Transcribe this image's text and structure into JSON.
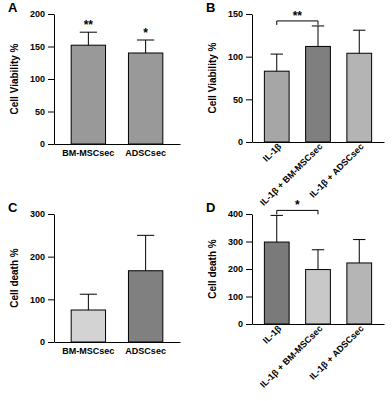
{
  "chart_data": [
    {
      "type": "bar",
      "title": "A",
      "y_label": "Cell Viability %",
      "categories": [
        "BM-MSCsec",
        "ADSCsec"
      ],
      "values": [
        152,
        140
      ],
      "errors": [
        20,
        20
      ],
      "colors": [
        "#999999",
        "#999999"
      ],
      "significance": [
        "**",
        "*"
      ],
      "ylim": [
        0,
        200
      ],
      "yticks": [
        0,
        50,
        100,
        150,
        200
      ],
      "grid": false
    },
    {
      "type": "bar",
      "title": "B",
      "y_label": "Cell Viability %",
      "categories": [
        "IL-1β",
        "IL-1β + BM-MSCsec",
        "IL-1β + ADSCsec"
      ],
      "values": [
        83,
        112,
        104
      ],
      "errors": [
        20,
        24,
        27
      ],
      "colors": [
        "#a6a6a6",
        "#7f7f7f",
        "#b4b4b4"
      ],
      "comparisons": [
        {
          "between": [
            0,
            1
          ],
          "label": "**"
        }
      ],
      "ylim": [
        0,
        150
      ],
      "yticks": [
        0,
        50,
        100,
        150
      ],
      "grid": false
    },
    {
      "type": "bar",
      "title": "C",
      "y_label": "Cell death %",
      "categories": [
        "BM-MSCsec",
        "ADSCsec"
      ],
      "values": [
        75,
        167
      ],
      "errors": [
        37,
        83
      ],
      "colors": [
        "#d3d3d3",
        "#808080"
      ],
      "ylim": [
        0,
        300
      ],
      "yticks": [
        0,
        100,
        200,
        300
      ],
      "grid": false
    },
    {
      "type": "bar",
      "title": "D",
      "y_label": "Cell death %",
      "categories": [
        "IL-1β",
        "IL-1β + BM-MSCsec",
        "IL-1β + ADSCsec"
      ],
      "values": [
        298,
        198,
        222
      ],
      "errors": [
        97,
        72,
        85
      ],
      "colors": [
        "#7a7a7a",
        "#c8c8c8",
        "#b5b5b5"
      ],
      "comparisons": [
        {
          "between": [
            0,
            1
          ],
          "label": "*"
        }
      ],
      "ylim": [
        0,
        400
      ],
      "yticks": [
        0,
        100,
        200,
        300,
        400
      ],
      "grid": false
    }
  ]
}
